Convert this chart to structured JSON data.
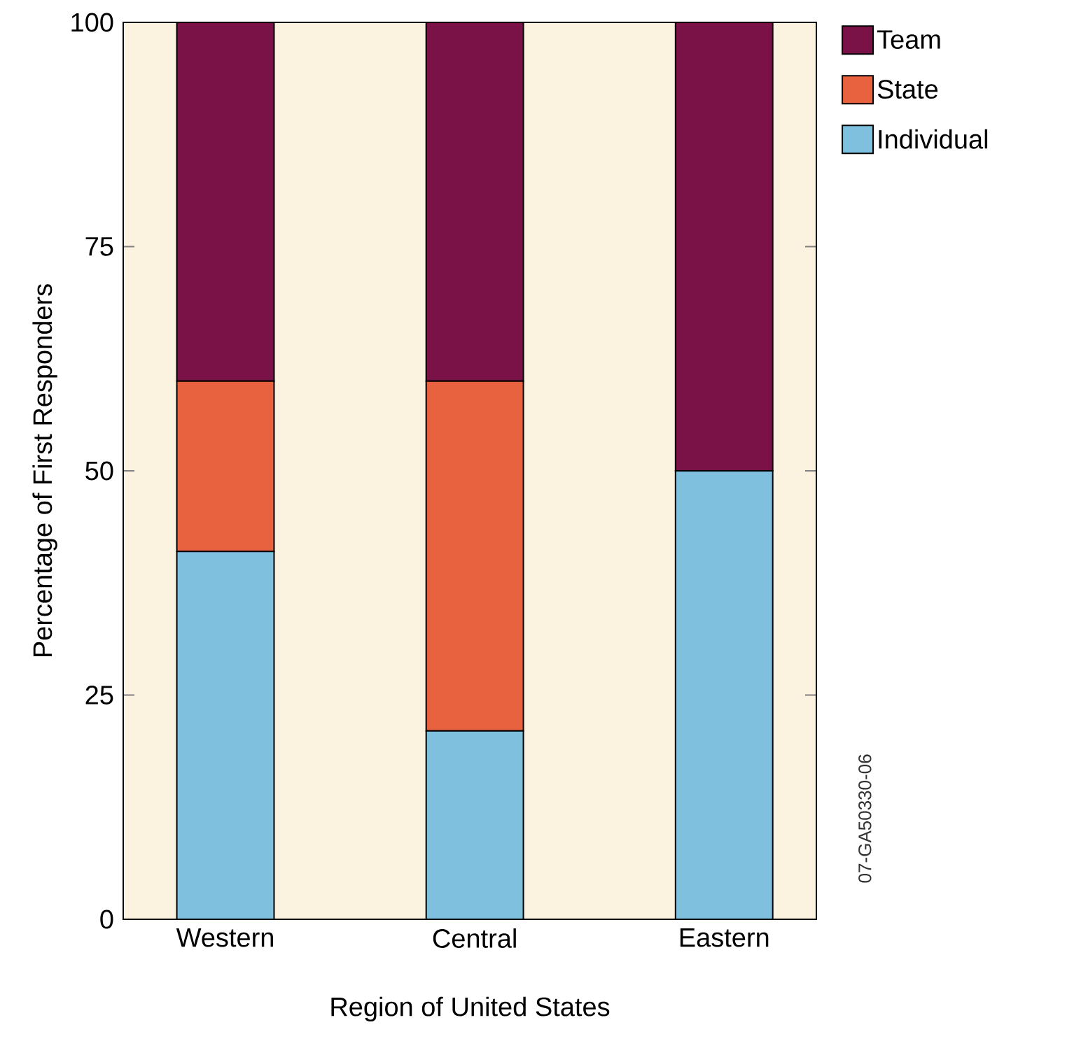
{
  "chart_data": {
    "type": "bar",
    "stacked": true,
    "xlabel": "Region of United States",
    "ylabel": "Percentage of First Responders",
    "categories": [
      "Western",
      "Central",
      "Eastern"
    ],
    "series": [
      {
        "name": "Individual",
        "color": "#7fc0df",
        "values": [
          41,
          21,
          50
        ]
      },
      {
        "name": "State",
        "color": "#e9623f",
        "values": [
          19,
          39,
          0
        ]
      },
      {
        "name": "Team",
        "color": "#7a1248",
        "values": [
          40,
          40,
          50
        ]
      }
    ],
    "ylim": [
      0,
      100
    ],
    "yticks": [
      0,
      25,
      50,
      75,
      100
    ],
    "legend": "top right",
    "grid": false,
    "annotations": [
      "07-GA50330-06"
    ]
  }
}
